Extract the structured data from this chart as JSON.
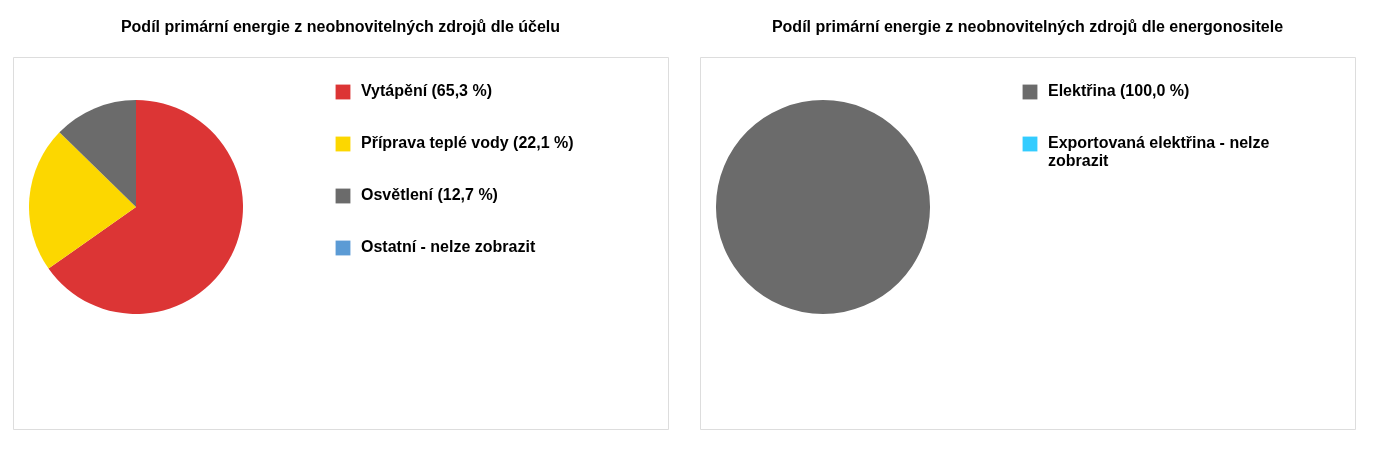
{
  "chart_data": [
    {
      "type": "pie",
      "title": "Podíl primární energie z neobnovitelných zdrojů dle účelu",
      "categories": [
        "Vytápění (65,3 %)",
        "Příprava teplé vody (22,1 %)",
        "Osvětlení (12,7 %)",
        "Ostatní - nelze zobrazit"
      ],
      "values": [
        65.3,
        22.1,
        12.7,
        null
      ],
      "colors": [
        "#dc3535",
        "#fcd700",
        "#6b6b6b",
        "#5b9bd5"
      ],
      "legend": "right"
    },
    {
      "type": "pie",
      "title": "Podíl primární energie z neobnovitelných zdrojů dle energonositele",
      "categories": [
        "Elektřina (100,0 %)",
        "Exportovaná elektřina - nelze zobrazit"
      ],
      "values": [
        100.0,
        null
      ],
      "colors": [
        "#6b6b6b",
        "#33ccff"
      ],
      "legend": "right"
    }
  ]
}
